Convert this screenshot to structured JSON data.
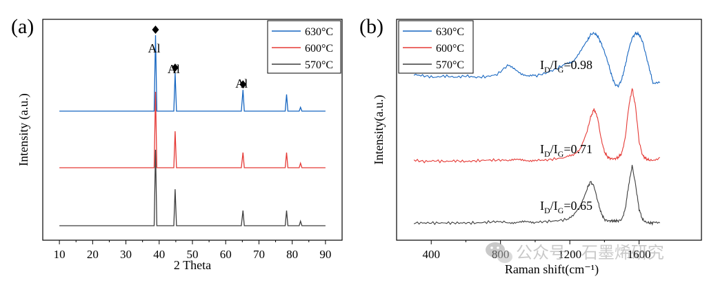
{
  "chart_data": [
    {
      "panel": "(a)",
      "type": "line",
      "xlabel": "2 Theta",
      "ylabel": "Intensity (a.u.)",
      "xlim": [
        5,
        95
      ],
      "xticks": [
        10,
        20,
        30,
        40,
        50,
        60,
        70,
        80,
        90
      ],
      "y_ticks_shown": false,
      "grid": false,
      "legend_position": "top-right",
      "x": [
        10,
        38.5,
        38.9,
        39.3,
        44.4,
        44.8,
        45.2,
        64.7,
        65.2,
        65.6,
        77.9,
        78.3,
        78.7,
        82.1,
        82.5,
        82.9,
        90
      ],
      "series": [
        {
          "name": "630°C",
          "color": "#1565c0",
          "offset": 2,
          "values": [
            0,
            0,
            1.0,
            0,
            0,
            0.5,
            0,
            0,
            0.28,
            0,
            0,
            0.22,
            0,
            0,
            0.05,
            0,
            0
          ]
        },
        {
          "name": "600°C",
          "color": "#e53935",
          "offset": 1,
          "values": [
            0,
            0,
            1.0,
            0,
            0,
            0.48,
            0,
            0,
            0.2,
            0,
            0,
            0.2,
            0,
            0,
            0.06,
            0,
            0
          ]
        },
        {
          "name": "570°C",
          "color": "#3c3c3c",
          "offset": 0,
          "values": [
            0,
            0,
            1.0,
            0,
            0,
            0.48,
            0,
            0,
            0.2,
            0,
            0,
            0.2,
            0,
            0,
            0.06,
            0,
            0
          ]
        }
      ],
      "annotations": [
        {
          "text": "Al",
          "x": 38.9
        },
        {
          "text": "Al",
          "x": 44.8
        },
        {
          "text": "Al",
          "x": 65.2
        }
      ]
    },
    {
      "panel": "(b)",
      "type": "line",
      "xlabel": "Raman shift(cm⁻¹)",
      "ylabel": "Intensity(a.u.)",
      "xlim": [
        200,
        1960
      ],
      "xticks": [
        400,
        800,
        1200,
        1600
      ],
      "y_ticks_shown": false,
      "grid": false,
      "legend_position": "top-left",
      "x": [
        300,
        360,
        420,
        480,
        540,
        600,
        660,
        720,
        780,
        840,
        880,
        920,
        960,
        1000,
        1060,
        1120,
        1180,
        1220,
        1260,
        1300,
        1320,
        1340,
        1360,
        1380,
        1400,
        1420,
        1440,
        1460,
        1480,
        1500,
        1520,
        1540,
        1560,
        1580,
        1600,
        1620,
        1640,
        1660,
        1680,
        1720
      ],
      "series": [
        {
          "name": "630°C",
          "color": "#1565c0",
          "offset": 2,
          "values": [
            0.22,
            0.2,
            0.18,
            0.2,
            0.18,
            0.2,
            0.18,
            0.19,
            0.22,
            0.35,
            0.3,
            0.24,
            0.2,
            0.2,
            0.24,
            0.3,
            0.38,
            0.42,
            0.55,
            0.7,
            0.8,
            0.82,
            0.78,
            0.68,
            0.55,
            0.4,
            0.22,
            0.08,
            0.05,
            0.15,
            0.35,
            0.58,
            0.75,
            0.82,
            0.8,
            0.7,
            0.5,
            0.3,
            0.1,
            0.1
          ]
        },
        {
          "name": "600°C",
          "color": "#e53935",
          "offset": 1,
          "values": [
            0.08,
            0.06,
            0.07,
            0.06,
            0.07,
            0.06,
            0.07,
            0.08,
            0.08,
            0.08,
            0.08,
            0.08,
            0.08,
            0.08,
            0.08,
            0.1,
            0.12,
            0.15,
            0.25,
            0.5,
            0.7,
            0.82,
            0.7,
            0.4,
            0.2,
            0.12,
            0.1,
            0.1,
            0.12,
            0.18,
            0.4,
            0.85,
            1.12,
            0.85,
            0.35,
            0.15,
            0.1,
            0.08,
            0.08,
            0.12
          ]
        },
        {
          "name": "570°C",
          "color": "#3c3c3c",
          "offset": 0,
          "values": [
            0.05,
            0.05,
            0.05,
            0.05,
            0.05,
            0.05,
            0.05,
            0.06,
            0.07,
            0.06,
            0.06,
            0.06,
            0.06,
            0.06,
            0.07,
            0.08,
            0.1,
            0.15,
            0.28,
            0.55,
            0.65,
            0.58,
            0.38,
            0.2,
            0.1,
            0.08,
            0.08,
            0.08,
            0.08,
            0.1,
            0.25,
            0.6,
            0.88,
            0.6,
            0.25,
            0.1,
            0.06,
            0.05,
            0.05,
            0.05
          ]
        }
      ],
      "annotations": [
        {
          "text": "I",
          "sub1": "D",
          "mid": "/I",
          "sub2": "G",
          "tail": "=0.98"
        },
        {
          "text": "I",
          "sub1": "D",
          "mid": "/I",
          "sub2": "G",
          "tail": "=0.71"
        },
        {
          "text": "I",
          "sub1": "D",
          "mid": "/I",
          "sub2": "G",
          "tail": "=0.65"
        }
      ]
    }
  ],
  "watermark": {
    "text": "公众号 · 石墨烯研究",
    "icon": "wechat-icon"
  }
}
